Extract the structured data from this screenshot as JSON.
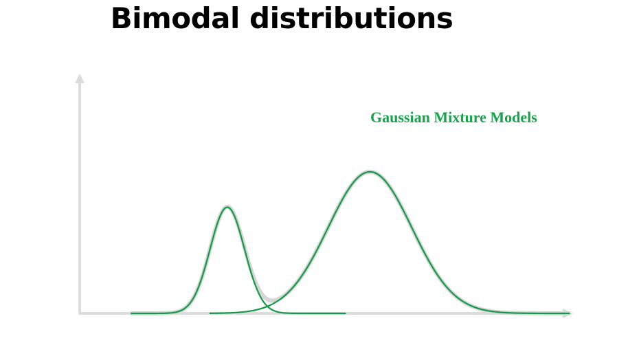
{
  "slide": {
    "title": "Bimodal distributions",
    "annotation": "Gaussian Mixture Models"
  },
  "colors": {
    "background": "#ffffff",
    "title": "#000000",
    "annotation": "#18a24a",
    "component_curve": "#139a46",
    "mixture_curve": "#d6d6d6",
    "axis": "#dcdcdc"
  },
  "chart_data": {
    "type": "line",
    "description_free": true,
    "x_range": [
      0,
      10
    ],
    "y_range": [
      0,
      1
    ],
    "axes_ticks": false,
    "grid": false,
    "components": [
      {
        "mean": 3.0,
        "sd": 0.35,
        "peak": 0.75
      },
      {
        "mean": 5.9,
        "sd": 0.85,
        "peak": 1.0
      }
    ],
    "mixture": "sum of components"
  }
}
